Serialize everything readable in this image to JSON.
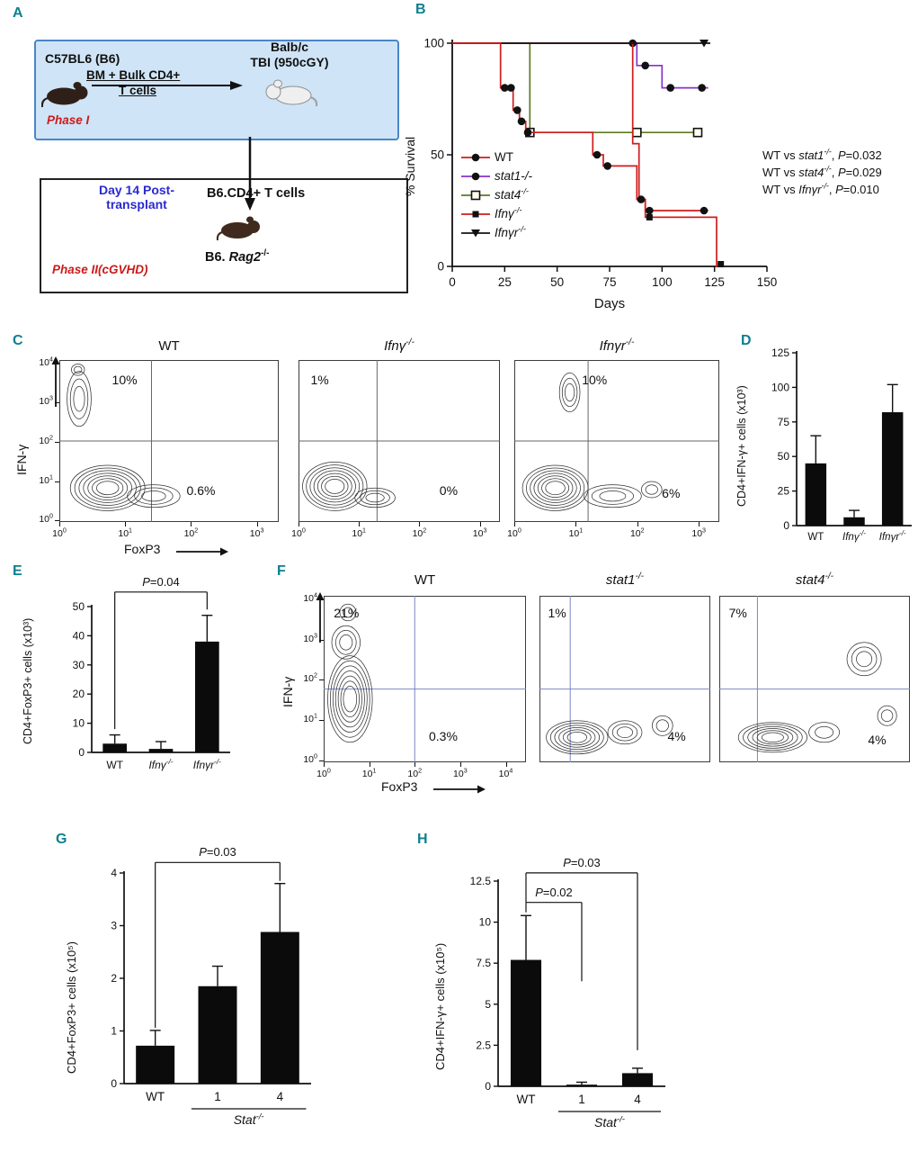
{
  "colors": {
    "panel_label": "#0f7f8e",
    "red_accent": "#cc1a1a",
    "blue_text": "#2a2ad0",
    "phase_box_bg": "#cfe4f6",
    "phase_box_border": "#4a86c8",
    "bar_fill": "#0b0b0b",
    "wt_line": "#cf1d1d",
    "stat1_line": "#8833cc",
    "stat4_line": "#5f7a22",
    "ifng_line": "#cf1d1d",
    "ifngr_line": "#151515"
  },
  "panels": {
    "A": {
      "label": "A",
      "donor": "C57BL6 (B6)",
      "graft1": "BM + Bulk CD4+",
      "graft2": "T cells",
      "recipient1": "Balb/c",
      "recipient2": "TBI (950cGY)",
      "phase1": "Phase I",
      "day14a": "Day 14 Post-",
      "day14b": "transplant",
      "cells": "B6.CD4+ T cells",
      "rag2_parts": [
        {
          "t": "B6. ",
          "b": true
        },
        {
          "t": "Rag2",
          "b": true,
          "i": true
        },
        {
          "t": "-/-",
          "b": true,
          "sup": true
        }
      ],
      "phase2": "Phase II(cGVHD)"
    },
    "B": {
      "label": "B"
    },
    "C": {
      "label": "C"
    },
    "D": {
      "label": "D"
    },
    "E": {
      "label": "E"
    },
    "F": {
      "label": "F"
    },
    "G": {
      "label": "G"
    },
    "H": {
      "label": "H"
    }
  },
  "chart_data": [
    {
      "id": "B",
      "type": "line",
      "xlabel": "Days",
      "ylabel": "% Survival",
      "xlim": [
        0,
        150
      ],
      "ylim": [
        0,
        100
      ],
      "xticks": [
        0,
        25,
        50,
        75,
        100,
        125,
        150
      ],
      "yticks": [
        0,
        50,
        100
      ],
      "series": [
        {
          "key": "stat4",
          "name_parts": [
            {
              "t": "stat4",
              "i": true
            },
            {
              "t": "-/-",
              "i": true,
              "sup": true
            }
          ],
          "color_key": "stat4_line",
          "marker": "square-open",
          "line": [
            [
              0,
              100
            ],
            [
              37,
              100
            ],
            [
              37,
              60
            ],
            [
              118,
              60
            ]
          ],
          "markers": [
            [
              37,
              60
            ],
            [
              88,
              60
            ],
            [
              117,
              60
            ]
          ]
        },
        {
          "key": "stat1",
          "name_parts": [
            {
              "t": "stat1-/-",
              "i": true
            }
          ],
          "color_key": "stat1_line",
          "marker": "circle",
          "line": [
            [
              0,
              100
            ],
            [
              88,
              100
            ],
            [
              88,
              90
            ],
            [
              100,
              90
            ],
            [
              100,
              80
            ],
            [
              122,
              80
            ]
          ],
          "markers": [
            [
              86,
              100
            ],
            [
              92,
              90
            ],
            [
              104,
              80
            ],
            [
              119,
              80
            ]
          ]
        },
        {
          "key": "ifng",
          "name_parts": [
            {
              "t": "Ifnγ",
              "i": true
            },
            {
              "t": "-/-",
              "i": true,
              "sup": true
            }
          ],
          "color_key": "ifng_line",
          "marker": "square",
          "line": [
            [
              0,
              100
            ],
            [
              86,
              100
            ],
            [
              86,
              55
            ],
            [
              89,
              55
            ],
            [
              89,
              30
            ],
            [
              92,
              30
            ],
            [
              92,
              22
            ],
            [
              126,
              22
            ],
            [
              126,
              0
            ],
            [
              129,
              0
            ]
          ],
          "markers": [
            [
              94,
              22
            ],
            [
              128,
              1
            ]
          ]
        },
        {
          "key": "ifngr",
          "name_parts": [
            {
              "t": "Ifnγr",
              "i": true
            },
            {
              "t": "-/-",
              "i": true,
              "sup": true
            }
          ],
          "color_key": "ifngr_line",
          "marker": "triangle-down",
          "line": [
            [
              0,
              100
            ],
            [
              123,
              100
            ]
          ],
          "markers": [
            [
              120,
              100
            ]
          ]
        },
        {
          "key": "wt",
          "name_parts": [
            {
              "t": "WT"
            }
          ],
          "color_key": "wt_line",
          "marker": "circle",
          "line": [
            [
              0,
              100
            ],
            [
              23,
              100
            ],
            [
              23,
              80
            ],
            [
              29,
              80
            ],
            [
              29,
              70
            ],
            [
              32,
              70
            ],
            [
              32,
              65
            ],
            [
              35,
              65
            ],
            [
              35,
              60
            ],
            [
              67,
              60
            ],
            [
              67,
              50
            ],
            [
              72,
              50
            ],
            [
              72,
              45
            ],
            [
              88,
              45
            ],
            [
              88,
              30
            ],
            [
              92,
              30
            ],
            [
              92,
              25
            ],
            [
              122,
              25
            ]
          ],
          "markers": [
            [
              25,
              80
            ],
            [
              28,
              80
            ],
            [
              31,
              70
            ],
            [
              33,
              65
            ],
            [
              36,
              60
            ],
            [
              69,
              50
            ],
            [
              74,
              45
            ],
            [
              90,
              30
            ],
            [
              94,
              25
            ],
            [
              120,
              25
            ]
          ]
        }
      ],
      "legend_order": [
        "wt",
        "stat1",
        "stat4",
        "ifng",
        "ifngr"
      ],
      "pvalues": [
        [
          {
            "t": "WT vs "
          },
          {
            "t": "stat1",
            "i": true
          },
          {
            "t": "-/-",
            "i": true,
            "sup": true
          },
          {
            "t": ", "
          },
          {
            "t": "P",
            "i": true
          },
          {
            "t": "=0.032"
          }
        ],
        [
          {
            "t": "WT vs "
          },
          {
            "t": "stat4",
            "i": true
          },
          {
            "t": "-/-",
            "i": true,
            "sup": true
          },
          {
            "t": ", "
          },
          {
            "t": "P",
            "i": true
          },
          {
            "t": "=0.029"
          }
        ],
        [
          {
            "t": "WT vs "
          },
          {
            "t": "Ifnγr",
            "i": true
          },
          {
            "t": "-/-",
            "i": true,
            "sup": true
          },
          {
            "t": ", "
          },
          {
            "t": "P",
            "i": true
          },
          {
            "t": "=0.010"
          }
        ]
      ]
    },
    {
      "id": "C",
      "type": "flow",
      "ylabel": "IFN-γ",
      "xlabel": "FoxP3",
      "yticks_exp": [
        4,
        3,
        2,
        1,
        0
      ],
      "xticks_exp": [
        0,
        1,
        2,
        3
      ],
      "quad_color": "#666666",
      "hy": 0.5,
      "plots": [
        {
          "title_parts": [
            {
              "t": "WT"
            }
          ],
          "vx": 0.42,
          "ul": "10%",
          "ul_pos": [
            0.24,
            0.08
          ],
          "lr": "0.6%",
          "lr_pos": [
            0.58,
            0.76
          ],
          "blobs": [
            [
              0.09,
              0.24,
              0.055,
              0.17,
              3
            ],
            [
              0.085,
              0.06,
              0.03,
              0.035,
              2
            ],
            [
              0.22,
              0.79,
              0.17,
              0.14,
              7
            ],
            [
              0.43,
              0.84,
              0.12,
              0.07,
              3
            ]
          ]
        },
        {
          "title_parts": [
            {
              "t": "Ifnγ",
              "i": true
            },
            {
              "t": "-/-",
              "i": true,
              "sup": true
            }
          ],
          "vx": 0.39,
          "ul": "1%",
          "ul_pos": [
            0.06,
            0.08
          ],
          "lr": "0%",
          "lr_pos": [
            0.7,
            0.76
          ],
          "blobs": [
            [
              0.18,
              0.78,
              0.16,
              0.15,
              7
            ],
            [
              0.38,
              0.85,
              0.1,
              0.06,
              3
            ]
          ]
        },
        {
          "title_parts": [
            {
              "t": "Ifnγr",
              "i": true
            },
            {
              "t": "-/-",
              "i": true,
              "sup": true
            }
          ],
          "vx": 0.36,
          "ul": "10%",
          "ul_pos": [
            0.33,
            0.08
          ],
          "lr": "6%",
          "lr_pos": [
            0.72,
            0.78
          ],
          "blobs": [
            [
              0.27,
              0.2,
              0.05,
              0.12,
              3
            ],
            [
              0.2,
              0.79,
              0.16,
              0.14,
              7
            ],
            [
              0.48,
              0.84,
              0.14,
              0.07,
              3
            ],
            [
              0.67,
              0.8,
              0.05,
              0.05,
              2
            ]
          ]
        }
      ]
    },
    {
      "id": "D",
      "type": "bar",
      "ylabel": "CD4+IFN-γ+ cells (x10³)",
      "categories": [
        [
          {
            "t": "WT"
          }
        ],
        [
          {
            "t": "Ifnγ",
            "i": true
          },
          {
            "t": "-/-",
            "i": true,
            "sup": true
          }
        ],
        [
          {
            "t": "Ifnγr",
            "i": true
          },
          {
            "t": "-/-",
            "i": true,
            "sup": true
          }
        ]
      ],
      "values": [
        45,
        6,
        82
      ],
      "errors": [
        20,
        5,
        20
      ],
      "ylim": [
        0,
        125
      ],
      "yticks": [
        0,
        25,
        50,
        75,
        100,
        125
      ]
    },
    {
      "id": "E",
      "type": "bar",
      "ylabel": "CD4+FoxP3+ cells (x10³)",
      "categories": [
        [
          {
            "t": "WT"
          }
        ],
        [
          {
            "t": "Ifnγ",
            "i": true
          },
          {
            "t": "-/-",
            "i": true,
            "sup": true
          }
        ],
        [
          {
            "t": "Ifnγr",
            "i": true
          },
          {
            "t": "-/-",
            "i": true,
            "sup": true
          }
        ]
      ],
      "values": [
        3,
        1.2,
        38
      ],
      "errors": [
        3,
        2.5,
        9
      ],
      "ylim": [
        0,
        50
      ],
      "yticks": [
        0,
        10,
        20,
        30,
        40,
        50
      ],
      "brackets": [
        {
          "label_parts": [
            {
              "t": "P",
              "i": true
            },
            {
              "t": "=0.04"
            }
          ],
          "from": 0,
          "to": 2,
          "level": 55,
          "from_end": 8,
          "to_end": 49
        }
      ]
    },
    {
      "id": "F",
      "type": "flow",
      "ylabel": "IFN-γ",
      "xlabel": "FoxP3",
      "yticks_exp": [
        4,
        3,
        2,
        1,
        0
      ],
      "xticks_exp": [
        0,
        1,
        2,
        3,
        4
      ],
      "quad_color": "#7a86c6",
      "hy": 0.56,
      "plots": [
        {
          "title_parts": [
            {
              "t": "WT"
            }
          ],
          "vx": 0.45,
          "ul": "21%",
          "ul_pos": [
            0.05,
            0.06
          ],
          "lr": "0.3%",
          "lr_pos": [
            0.52,
            0.8
          ],
          "blobs": [
            [
              0.13,
              0.62,
              0.11,
              0.26,
              7
            ],
            [
              0.11,
              0.28,
              0.07,
              0.1,
              3
            ],
            [
              0.12,
              0.1,
              0.04,
              0.05,
              2
            ]
          ]
        },
        {
          "title_parts": [
            {
              "t": "stat1",
              "i": true
            },
            {
              "t": "-/-",
              "i": true,
              "sup": true
            }
          ],
          "vx": 0.18,
          "ul": "1%",
          "ul_pos": [
            0.05,
            0.06
          ],
          "lr": "4%",
          "lr_pos": [
            0.75,
            0.8
          ],
          "blobs": [
            [
              0.22,
              0.85,
              0.18,
              0.1,
              6
            ],
            [
              0.5,
              0.82,
              0.1,
              0.07,
              3
            ],
            [
              0.72,
              0.78,
              0.06,
              0.06,
              2
            ]
          ]
        },
        {
          "title_parts": [
            {
              "t": "stat4",
              "i": true
            },
            {
              "t": "-/-",
              "i": true,
              "sup": true
            }
          ],
          "vx": 0.2,
          "ul": "7%",
          "ul_pos": [
            0.05,
            0.06
          ],
          "lr": "4%",
          "lr_pos": [
            0.78,
            0.82
          ],
          "blobs": [
            [
              0.28,
              0.85,
              0.18,
              0.09,
              6
            ],
            [
              0.55,
              0.82,
              0.08,
              0.06,
              2
            ],
            [
              0.76,
              0.38,
              0.09,
              0.1,
              3
            ],
            [
              0.88,
              0.72,
              0.05,
              0.06,
              2
            ]
          ]
        }
      ]
    },
    {
      "id": "G",
      "type": "bar",
      "ylabel": "CD4+FoxP3+ cells (x10⁵)",
      "categories": [
        [
          {
            "t": "WT"
          }
        ],
        [
          {
            "t": "1"
          }
        ],
        [
          {
            "t": "4"
          }
        ]
      ],
      "values": [
        0.72,
        1.85,
        2.88
      ],
      "errors": [
        0.29,
        0.38,
        0.92
      ],
      "ylim": [
        0,
        4
      ],
      "yticks": [
        0,
        1,
        2,
        3,
        4
      ],
      "brackets": [
        {
          "label_parts": [
            {
              "t": "P",
              "i": true
            },
            {
              "t": "=0.03"
            }
          ],
          "from": 0,
          "to": 2,
          "level": 4.2,
          "from_end": 1.06,
          "to_end": 3.85
        }
      ],
      "group": {
        "label_parts": [
          {
            "t": "Stat",
            "i": true
          },
          {
            "t": "-/-",
            "i": true,
            "sup": true
          }
        ],
        "from": 1,
        "to": 2
      }
    },
    {
      "id": "H",
      "type": "bar",
      "ylabel": "CD4+IFN-γ+ cells (x10⁵)",
      "categories": [
        [
          {
            "t": "WT"
          }
        ],
        [
          {
            "t": "1"
          }
        ],
        [
          {
            "t": "4"
          }
        ]
      ],
      "values": [
        7.7,
        0.1,
        0.8
      ],
      "errors": [
        2.7,
        0.15,
        0.3
      ],
      "ylim": [
        0,
        12.5
      ],
      "yticks": [
        0,
        2.5,
        5,
        7.5,
        10,
        12.5
      ],
      "brackets": [
        {
          "label_parts": [
            {
              "t": "P",
              "i": true
            },
            {
              "t": "=0.02"
            }
          ],
          "from": 0,
          "to": 1,
          "level": 11.2,
          "from_end": 10.6,
          "to_end": 6.4
        },
        {
          "label_parts": [
            {
              "t": "P",
              "i": true
            },
            {
              "t": "=0.03"
            }
          ],
          "from": 0,
          "to": 2,
          "level": 13.0,
          "from_end": 11.2,
          "to_end": 2.2
        }
      ],
      "group": {
        "label_parts": [
          {
            "t": "Stat",
            "i": true
          },
          {
            "t": "-/-",
            "i": true,
            "sup": true
          }
        ],
        "from": 1,
        "to": 2
      }
    }
  ]
}
